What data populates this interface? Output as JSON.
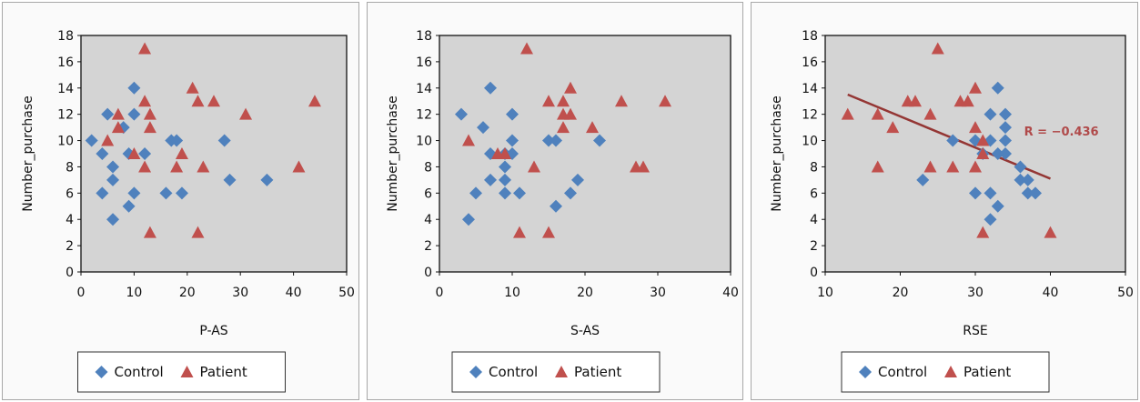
{
  "chart_data": [
    {
      "type": "scatter",
      "title": "",
      "xlabel": "P-AS",
      "ylabel": "Number_purchase",
      "xlim": [
        0,
        50
      ],
      "ylim": [
        0,
        18
      ],
      "xticks": [
        0,
        10,
        20,
        30,
        40,
        50
      ],
      "yticks": [
        0,
        2,
        4,
        6,
        8,
        10,
        12,
        14,
        16,
        18
      ],
      "grid": false,
      "legend": "bottom",
      "series": [
        {
          "name": "Control",
          "color": "#4f81bd",
          "marker": "diamond",
          "points": [
            [
              2,
              10
            ],
            [
              4,
              9
            ],
            [
              4,
              6
            ],
            [
              5,
              12
            ],
            [
              6,
              8
            ],
            [
              6,
              7
            ],
            [
              6,
              4
            ],
            [
              8,
              11
            ],
            [
              9,
              9
            ],
            [
              9,
              5
            ],
            [
              10,
              14
            ],
            [
              10,
              12
            ],
            [
              10,
              6
            ],
            [
              12,
              9
            ],
            [
              16,
              6
            ],
            [
              17,
              10
            ],
            [
              18,
              10
            ],
            [
              19,
              6
            ],
            [
              27,
              10
            ],
            [
              28,
              7
            ],
            [
              35,
              7
            ]
          ]
        },
        {
          "name": "Patient",
          "color": "#c0504d",
          "marker": "triangle",
          "points": [
            [
              5,
              10
            ],
            [
              7,
              12
            ],
            [
              7,
              11
            ],
            [
              10,
              9
            ],
            [
              12,
              17
            ],
            [
              12,
              13
            ],
            [
              12,
              8
            ],
            [
              13,
              12
            ],
            [
              13,
              11
            ],
            [
              13,
              3
            ],
            [
              18,
              8
            ],
            [
              19,
              9
            ],
            [
              21,
              14
            ],
            [
              22,
              13
            ],
            [
              22,
              3
            ],
            [
              23,
              8
            ],
            [
              25,
              13
            ],
            [
              31,
              12
            ],
            [
              41,
              8
            ],
            [
              44,
              13
            ]
          ]
        }
      ]
    },
    {
      "type": "scatter",
      "title": "",
      "xlabel": "S-AS",
      "ylabel": "Number_purchase",
      "xlim": [
        0,
        40
      ],
      "ylim": [
        0,
        18
      ],
      "xticks": [
        0,
        10,
        20,
        30,
        40
      ],
      "yticks": [
        0,
        2,
        4,
        6,
        8,
        10,
        12,
        14,
        16,
        18
      ],
      "grid": false,
      "legend": "bottom",
      "series": [
        {
          "name": "Control",
          "color": "#4f81bd",
          "marker": "diamond",
          "points": [
            [
              3,
              12
            ],
            [
              4,
              4
            ],
            [
              5,
              6
            ],
            [
              6,
              11
            ],
            [
              7,
              14
            ],
            [
              7,
              9
            ],
            [
              7,
              7
            ],
            [
              9,
              9
            ],
            [
              9,
              8
            ],
            [
              9,
              7
            ],
            [
              9,
              6
            ],
            [
              10,
              12
            ],
            [
              10,
              10
            ],
            [
              10,
              9
            ],
            [
              11,
              6
            ],
            [
              15,
              10
            ],
            [
              16,
              10
            ],
            [
              16,
              5
            ],
            [
              18,
              6
            ],
            [
              19,
              7
            ],
            [
              22,
              10
            ]
          ]
        },
        {
          "name": "Patient",
          "color": "#c0504d",
          "marker": "triangle",
          "points": [
            [
              4,
              10
            ],
            [
              8,
              9
            ],
            [
              9,
              9
            ],
            [
              11,
              3
            ],
            [
              12,
              17
            ],
            [
              13,
              8
            ],
            [
              15,
              13
            ],
            [
              15,
              3
            ],
            [
              17,
              13
            ],
            [
              17,
              12
            ],
            [
              17,
              11
            ],
            [
              18,
              14
            ],
            [
              18,
              12
            ],
            [
              21,
              11
            ],
            [
              25,
              13
            ],
            [
              27,
              8
            ],
            [
              28,
              8
            ],
            [
              31,
              13
            ]
          ]
        }
      ]
    },
    {
      "type": "scatter",
      "title": "",
      "xlabel": "RSE",
      "ylabel": "Number_purchase",
      "xlim": [
        10,
        50
      ],
      "ylim": [
        0,
        18
      ],
      "xticks": [
        10,
        20,
        30,
        40,
        50
      ],
      "yticks": [
        0,
        2,
        4,
        6,
        8,
        10,
        12,
        14,
        16,
        18
      ],
      "grid": false,
      "legend": "bottom",
      "annotation": "R = −0.436",
      "trendline": {
        "color": "#943634",
        "from": [
          13,
          13.5
        ],
        "to": [
          40,
          7.1
        ]
      },
      "series": [
        {
          "name": "Control",
          "color": "#4f81bd",
          "marker": "diamond",
          "points": [
            [
              23,
              7
            ],
            [
              27,
              10
            ],
            [
              30,
              10
            ],
            [
              30,
              6
            ],
            [
              31,
              9
            ],
            [
              32,
              12
            ],
            [
              32,
              10
            ],
            [
              32,
              6
            ],
            [
              32,
              4
            ],
            [
              33,
              14
            ],
            [
              33,
              9
            ],
            [
              33,
              5
            ],
            [
              34,
              12
            ],
            [
              34,
              11
            ],
            [
              34,
              10
            ],
            [
              34,
              9
            ],
            [
              36,
              8
            ],
            [
              36,
              7
            ],
            [
              37,
              7
            ],
            [
              37,
              6
            ],
            [
              38,
              6
            ]
          ]
        },
        {
          "name": "Patient",
          "color": "#c0504d",
          "marker": "triangle",
          "points": [
            [
              13,
              12
            ],
            [
              17,
              12
            ],
            [
              17,
              8
            ],
            [
              19,
              11
            ],
            [
              21,
              13
            ],
            [
              22,
              13
            ],
            [
              24,
              12
            ],
            [
              24,
              8
            ],
            [
              25,
              17
            ],
            [
              27,
              8
            ],
            [
              28,
              13
            ],
            [
              29,
              13
            ],
            [
              30,
              14
            ],
            [
              30,
              11
            ],
            [
              30,
              8
            ],
            [
              31,
              10
            ],
            [
              31,
              9
            ],
            [
              31,
              3
            ],
            [
              40,
              3
            ]
          ]
        }
      ]
    }
  ]
}
